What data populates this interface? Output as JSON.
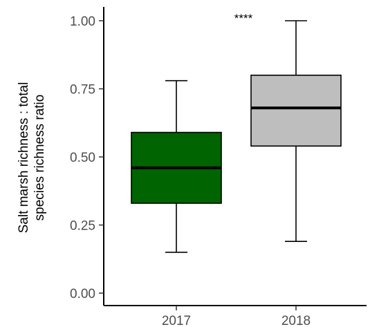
{
  "chart_data": {
    "type": "box",
    "ylabel_lines": [
      "Salt marsh richness : total",
      "species richness ratio"
    ],
    "xlabel": "",
    "ylim": [
      0,
      1
    ],
    "y_ticks": [
      0,
      0.25,
      0.5,
      0.75,
      1
    ],
    "y_tick_labels": [
      "0.00",
      "0.25",
      "0.50",
      "0.75",
      "1.00"
    ],
    "categories": [
      "2017",
      "2018"
    ],
    "boxes": [
      {
        "category": "2017",
        "whisker_low": 0.15,
        "q1": 0.33,
        "median": 0.46,
        "q3": 0.59,
        "whisker_high": 0.78,
        "fill": "#006400"
      },
      {
        "category": "2018",
        "whisker_low": 0.19,
        "q1": 0.54,
        "median": 0.68,
        "q3": 0.8,
        "whisker_high": 1.0,
        "fill": "#bebebe"
      }
    ],
    "annotation": {
      "text": "****",
      "x_between": [
        "2017",
        "2018"
      ],
      "y": 1.0
    },
    "grid": false,
    "legend": "none"
  }
}
